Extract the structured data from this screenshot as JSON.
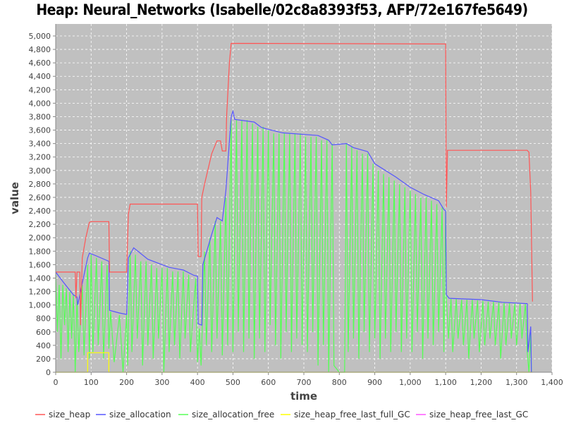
{
  "chart_data": {
    "type": "line",
    "title": "Heap: Neural_Networks (Isabelle/02c8a8393f53, AFP/72e167fe5649)",
    "xlabel": "time",
    "ylabel": "value",
    "xlim": [
      0,
      1400
    ],
    "ylim": [
      0,
      5100
    ],
    "xticks": [
      0,
      100,
      200,
      300,
      400,
      500,
      600,
      700,
      800,
      900,
      1000,
      1100,
      1200,
      1300,
      1400
    ],
    "xtick_labels": [
      "0",
      "100",
      "200",
      "300",
      "400",
      "500",
      "600",
      "700",
      "800",
      "900",
      "1,000",
      "1,100",
      "1,200",
      "1,300",
      "1,400"
    ],
    "yticks": [
      0,
      200,
      400,
      600,
      800,
      1000,
      1200,
      1400,
      1600,
      1800,
      2000,
      2200,
      2400,
      2600,
      2800,
      3000,
      3200,
      3400,
      3600,
      3800,
      4000,
      4200,
      4400,
      4600,
      4800,
      5000
    ],
    "ytick_labels": [
      "0",
      "200",
      "400",
      "600",
      "800",
      "1,000",
      "1,200",
      "1,400",
      "1,600",
      "1,800",
      "2,000",
      "2,200",
      "2,400",
      "2,600",
      "2,800",
      "3,000",
      "3,200",
      "3,400",
      "3,600",
      "3,800",
      "4,000",
      "4,200",
      "4,400",
      "4,600",
      "4,800",
      "5,000"
    ],
    "grid": true,
    "legend_placement": "bottom",
    "background": "#c0c0c0",
    "series": [
      {
        "name": "size_allocation_free",
        "color": "#55ff55",
        "points": [
          [
            0,
            1450
          ],
          [
            5,
            600
          ],
          [
            10,
            1300
          ],
          [
            15,
            200
          ],
          [
            20,
            1300
          ],
          [
            25,
            700
          ],
          [
            30,
            1250
          ],
          [
            35,
            300
          ],
          [
            40,
            1200
          ],
          [
            45,
            500
          ],
          [
            50,
            1150
          ],
          [
            55,
            0
          ],
          [
            60,
            1100
          ],
          [
            65,
            300
          ],
          [
            75,
            1300
          ],
          [
            80,
            250
          ],
          [
            90,
            1600
          ],
          [
            95,
            200
          ],
          [
            100,
            1750
          ],
          [
            105,
            300
          ],
          [
            115,
            1700
          ],
          [
            120,
            400
          ],
          [
            130,
            1650
          ],
          [
            135,
            200
          ],
          [
            145,
            1600
          ],
          [
            150,
            350
          ],
          [
            155,
            900
          ],
          [
            165,
            150
          ],
          [
            180,
            850
          ],
          [
            190,
            0
          ],
          [
            200,
            850
          ],
          [
            203,
            100
          ],
          [
            210,
            1800
          ],
          [
            215,
            300
          ],
          [
            225,
            1750
          ],
          [
            230,
            500
          ],
          [
            240,
            1650
          ],
          [
            245,
            100
          ],
          [
            255,
            1650
          ],
          [
            260,
            400
          ],
          [
            270,
            1600
          ],
          [
            275,
            200
          ],
          [
            285,
            1550
          ],
          [
            290,
            500
          ],
          [
            300,
            1550
          ],
          [
            305,
            0
          ],
          [
            315,
            1550
          ],
          [
            320,
            300
          ],
          [
            330,
            1500
          ],
          [
            335,
            400
          ],
          [
            345,
            1500
          ],
          [
            350,
            200
          ],
          [
            360,
            1500
          ],
          [
            365,
            500
          ],
          [
            375,
            1450
          ],
          [
            380,
            300
          ],
          [
            395,
            1400
          ],
          [
            400,
            150
          ],
          [
            405,
            650
          ],
          [
            410,
            100
          ],
          [
            420,
            1800
          ],
          [
            425,
            400
          ],
          [
            435,
            2000
          ],
          [
            440,
            300
          ],
          [
            450,
            2250
          ],
          [
            455,
            500
          ],
          [
            465,
            2250
          ],
          [
            470,
            250
          ],
          [
            480,
            2600
          ],
          [
            485,
            400
          ],
          [
            495,
            3750
          ],
          [
            500,
            300
          ],
          [
            510,
            3750
          ],
          [
            515,
            600
          ],
          [
            525,
            3750
          ],
          [
            530,
            300
          ],
          [
            540,
            3750
          ],
          [
            545,
            500
          ],
          [
            555,
            3700
          ],
          [
            560,
            200
          ],
          [
            570,
            3650
          ],
          [
            575,
            500
          ],
          [
            585,
            3650
          ],
          [
            590,
            300
          ],
          [
            600,
            3600
          ],
          [
            605,
            700
          ],
          [
            615,
            3550
          ],
          [
            620,
            400
          ],
          [
            630,
            3550
          ],
          [
            635,
            200
          ],
          [
            645,
            3550
          ],
          [
            650,
            600
          ],
          [
            660,
            3550
          ],
          [
            665,
            300
          ],
          [
            675,
            3550
          ],
          [
            680,
            500
          ],
          [
            690,
            3550
          ],
          [
            695,
            400
          ],
          [
            705,
            3500
          ],
          [
            710,
            300
          ],
          [
            720,
            3500
          ],
          [
            725,
            600
          ],
          [
            735,
            3500
          ],
          [
            740,
            100
          ],
          [
            750,
            3450
          ],
          [
            755,
            400
          ],
          [
            765,
            3450
          ],
          [
            770,
            0
          ],
          [
            780,
            3400
          ],
          [
            785,
            100
          ],
          [
            800,
            0
          ],
          [
            815,
            0
          ],
          [
            820,
            3400
          ],
          [
            825,
            300
          ],
          [
            835,
            3350
          ],
          [
            840,
            500
          ],
          [
            850,
            3300
          ],
          [
            855,
            200
          ],
          [
            865,
            3250
          ],
          [
            870,
            600
          ],
          [
            880,
            3250
          ],
          [
            885,
            300
          ],
          [
            895,
            3100
          ],
          [
            900,
            500
          ],
          [
            910,
            3000
          ],
          [
            915,
            200
          ],
          [
            925,
            2950
          ],
          [
            930,
            500
          ],
          [
            940,
            2900
          ],
          [
            945,
            300
          ],
          [
            955,
            2850
          ],
          [
            960,
            600
          ],
          [
            970,
            2800
          ],
          [
            975,
            300
          ],
          [
            985,
            2750
          ],
          [
            990,
            500
          ],
          [
            1000,
            2700
          ],
          [
            1005,
            300
          ],
          [
            1015,
            2650
          ],
          [
            1020,
            600
          ],
          [
            1030,
            2600
          ],
          [
            1035,
            200
          ],
          [
            1045,
            2600
          ],
          [
            1050,
            500
          ],
          [
            1060,
            2550
          ],
          [
            1065,
            400
          ],
          [
            1075,
            2500
          ],
          [
            1080,
            600
          ],
          [
            1090,
            2450
          ],
          [
            1095,
            300
          ],
          [
            1100,
            2400
          ],
          [
            1102,
            1100
          ],
          [
            1108,
            500
          ],
          [
            1115,
            1100
          ],
          [
            1120,
            300
          ],
          [
            1130,
            1100
          ],
          [
            1135,
            500
          ],
          [
            1145,
            1080
          ],
          [
            1150,
            400
          ],
          [
            1160,
            1080
          ],
          [
            1165,
            200
          ],
          [
            1175,
            1080
          ],
          [
            1180,
            500
          ],
          [
            1190,
            1070
          ],
          [
            1195,
            300
          ],
          [
            1205,
            1060
          ],
          [
            1210,
            400
          ],
          [
            1220,
            1050
          ],
          [
            1225,
            500
          ],
          [
            1235,
            1050
          ],
          [
            1240,
            400
          ],
          [
            1250,
            1040
          ],
          [
            1255,
            200
          ],
          [
            1265,
            1030
          ],
          [
            1270,
            400
          ],
          [
            1280,
            1030
          ],
          [
            1285,
            500
          ],
          [
            1295,
            1020
          ],
          [
            1300,
            400
          ],
          [
            1310,
            1020
          ],
          [
            1315,
            500
          ],
          [
            1325,
            1020
          ],
          [
            1330,
            300
          ],
          [
            1335,
            0
          ],
          [
            1340,
            600
          ],
          [
            1342,
            0
          ]
        ]
      },
      {
        "name": "size_heap_free_last_full_GC",
        "color": "#ffff00",
        "points": [
          [
            0,
            0
          ],
          [
            90,
            0
          ],
          [
            90,
            290
          ],
          [
            150,
            290
          ],
          [
            150,
            0
          ],
          [
            1345,
            0
          ]
        ]
      },
      {
        "name": "size_heap_free_last_GC",
        "color": "#ff55ff",
        "points": []
      },
      {
        "name": "size_allocation",
        "color": "#5555ff",
        "points": [
          [
            0,
            1490
          ],
          [
            20,
            1350
          ],
          [
            50,
            1150
          ],
          [
            60,
            1120
          ],
          [
            62,
            1000
          ],
          [
            70,
            1200
          ],
          [
            90,
            1700
          ],
          [
            95,
            1770
          ],
          [
            110,
            1740
          ],
          [
            150,
            1650
          ],
          [
            152,
            920
          ],
          [
            180,
            880
          ],
          [
            200,
            860
          ],
          [
            205,
            1700
          ],
          [
            220,
            1850
          ],
          [
            260,
            1680
          ],
          [
            300,
            1600
          ],
          [
            320,
            1560
          ],
          [
            360,
            1520
          ],
          [
            390,
            1440
          ],
          [
            400,
            1430
          ],
          [
            402,
            720
          ],
          [
            412,
            700
          ],
          [
            415,
            1600
          ],
          [
            440,
            2050
          ],
          [
            455,
            2300
          ],
          [
            470,
            2250
          ],
          [
            480,
            2700
          ],
          [
            495,
            3800
          ],
          [
            500,
            3880
          ],
          [
            505,
            3760
          ],
          [
            560,
            3720
          ],
          [
            580,
            3640
          ],
          [
            600,
            3610
          ],
          [
            640,
            3560
          ],
          [
            740,
            3520
          ],
          [
            770,
            3450
          ],
          [
            780,
            3380
          ],
          [
            820,
            3400
          ],
          [
            840,
            3340
          ],
          [
            880,
            3280
          ],
          [
            900,
            3100
          ],
          [
            960,
            2900
          ],
          [
            1000,
            2750
          ],
          [
            1040,
            2640
          ],
          [
            1080,
            2550
          ],
          [
            1095,
            2420
          ],
          [
            1100,
            2400
          ],
          [
            1102,
            1150
          ],
          [
            1110,
            1100
          ],
          [
            1200,
            1080
          ],
          [
            1260,
            1040
          ],
          [
            1330,
            1020
          ],
          [
            1332,
            300
          ],
          [
            1340,
            680
          ],
          [
            1342,
            0
          ]
        ]
      },
      {
        "name": "size_heap",
        "color": "#ff5555",
        "points": [
          [
            0,
            1490
          ],
          [
            55,
            1490
          ],
          [
            57,
            1100
          ],
          [
            60,
            1490
          ],
          [
            68,
            1490
          ],
          [
            70,
            700
          ],
          [
            75,
            1700
          ],
          [
            85,
            2000
          ],
          [
            95,
            2230
          ],
          [
            100,
            2240
          ],
          [
            150,
            2240
          ],
          [
            152,
            1490
          ],
          [
            200,
            1490
          ],
          [
            205,
            2350
          ],
          [
            210,
            2500
          ],
          [
            400,
            2500
          ],
          [
            402,
            1720
          ],
          [
            410,
            1720
          ],
          [
            412,
            2600
          ],
          [
            420,
            2800
          ],
          [
            440,
            3250
          ],
          [
            455,
            3440
          ],
          [
            465,
            3440
          ],
          [
            470,
            3290
          ],
          [
            480,
            3290
          ],
          [
            482,
            3800
          ],
          [
            490,
            4600
          ],
          [
            495,
            4890
          ],
          [
            1100,
            4880
          ],
          [
            1102,
            2450
          ],
          [
            1105,
            3300
          ],
          [
            1330,
            3300
          ],
          [
            1335,
            3270
          ],
          [
            1340,
            2680
          ],
          [
            1345,
            1050
          ]
        ]
      }
    ],
    "legend": [
      "size_heap",
      "size_allocation",
      "size_allocation_free",
      "size_heap_free_last_full_GC",
      "size_heap_free_last_GC"
    ],
    "legend_colors": [
      "#ff5555",
      "#5555ff",
      "#55ff55",
      "#ffff00",
      "#ff55ff"
    ]
  }
}
